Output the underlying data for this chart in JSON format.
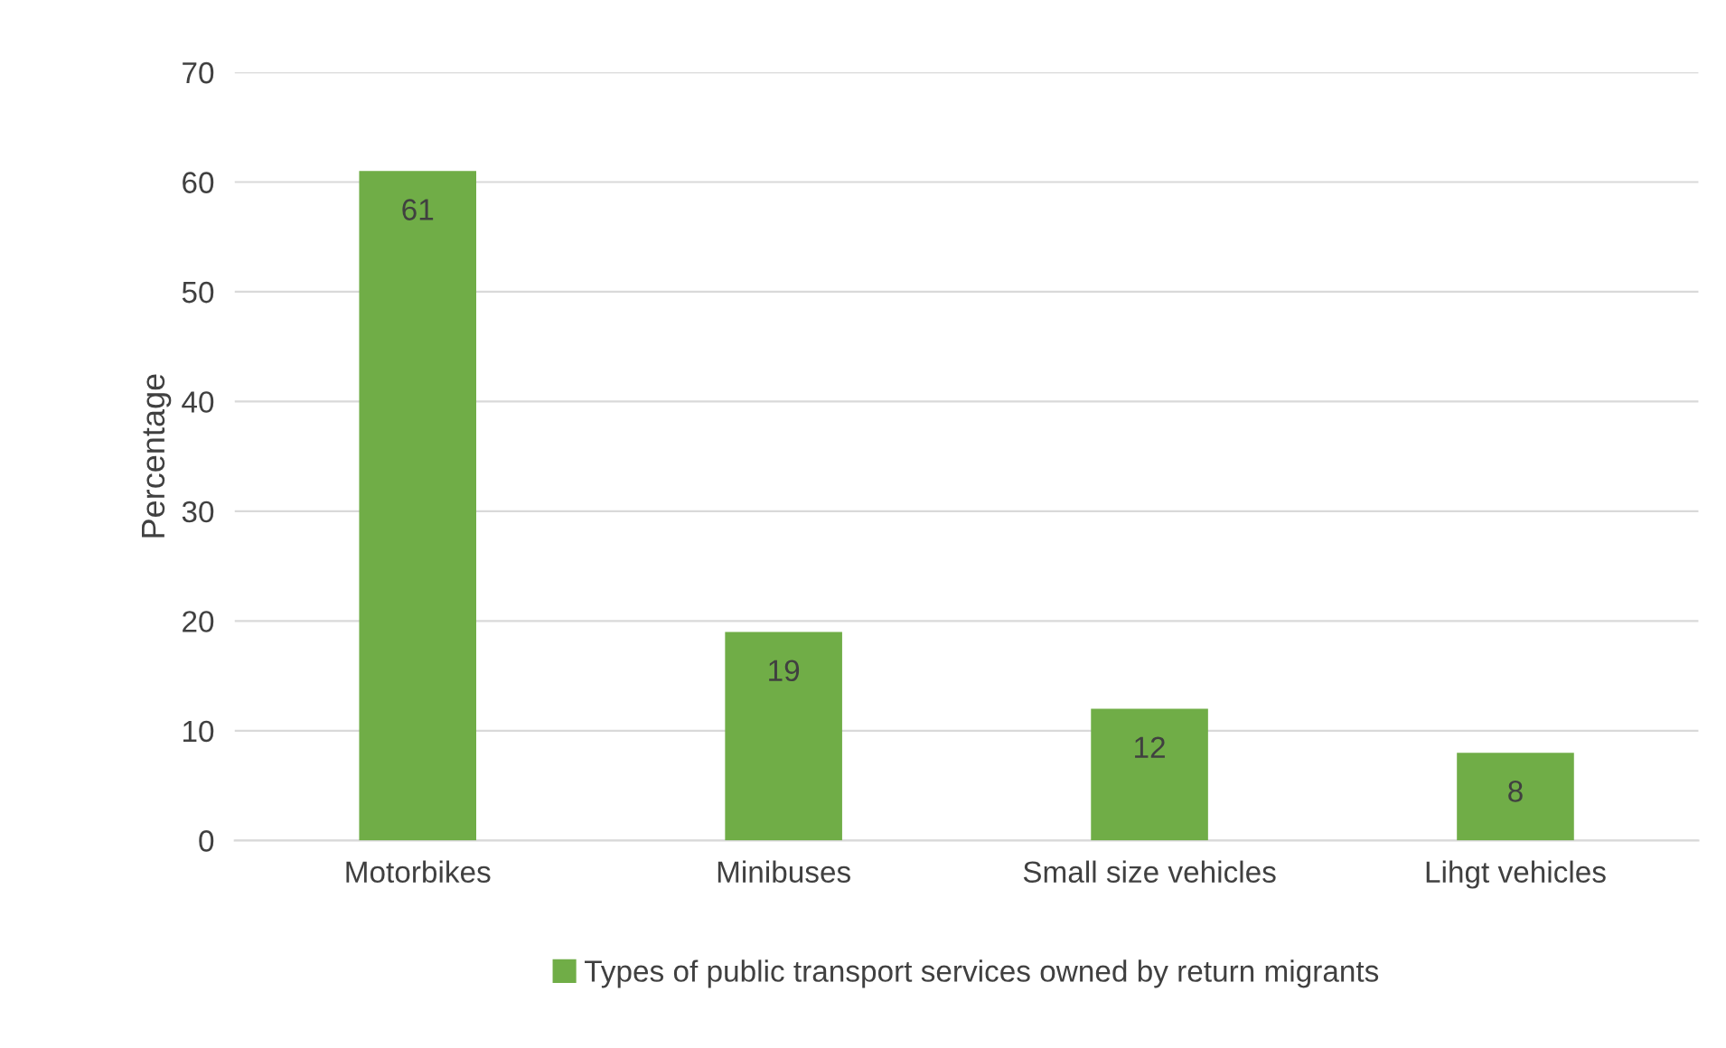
{
  "chart_data": {
    "type": "bar",
    "ylabel": "Percentage",
    "categories": [
      "Motorbikes",
      "Minibuses",
      "Small size vehicles",
      "Lihgt vehicles"
    ],
    "series": [
      {
        "name": "Types of public transport services owned by return migrants",
        "color": "#70ad47",
        "values": [
          61,
          19,
          12,
          8
        ]
      }
    ],
    "ylim": [
      0,
      70
    ],
    "yticks": [
      0,
      10,
      20,
      30,
      40,
      50,
      60,
      70
    ],
    "grid": "y",
    "legend": "bottom",
    "data_labels": true
  }
}
